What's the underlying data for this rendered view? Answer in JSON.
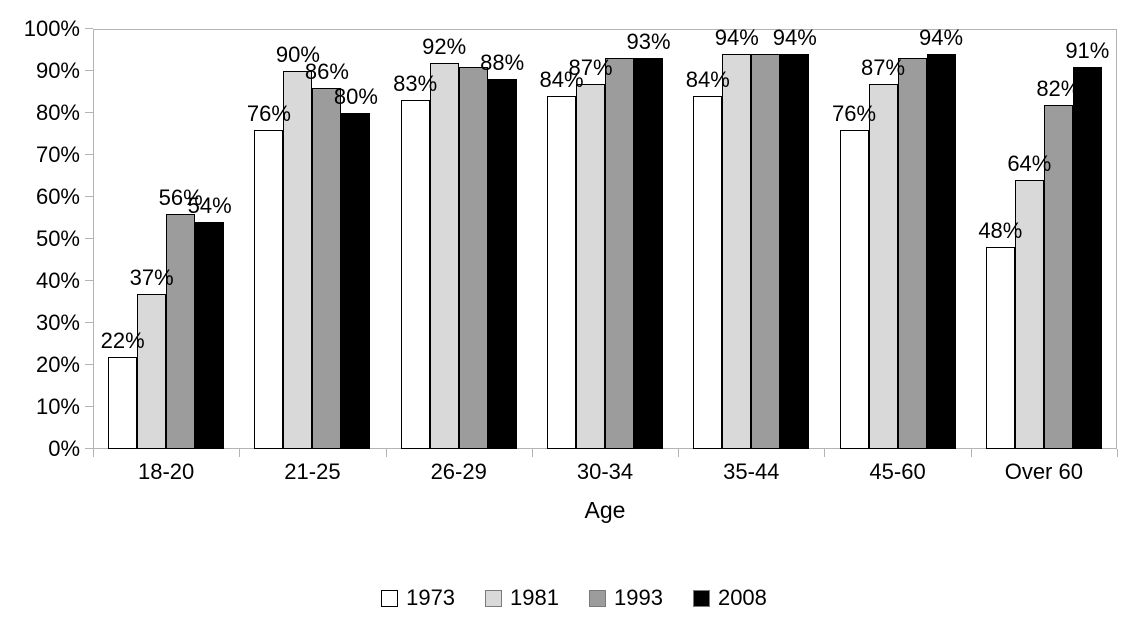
{
  "chart_data": {
    "type": "bar",
    "title": "",
    "xlabel": "Age",
    "ylabel": "",
    "categories": [
      "18-20",
      "21-25",
      "26-29",
      "30-34",
      "35-44",
      "45-60",
      "Over 60"
    ],
    "series": [
      {
        "name": "1973",
        "color": "#ffffff",
        "values": [
          22,
          76,
          83,
          84,
          84,
          76,
          48
        ],
        "labels": [
          "22%",
          "76%",
          "83%",
          "84%",
          "84%",
          "76%",
          "48%"
        ]
      },
      {
        "name": "1981",
        "color": "#d9d9d9",
        "values": [
          37,
          90,
          92,
          87,
          94,
          87,
          64
        ],
        "labels": [
          "37%",
          "90%",
          "92%",
          "87%",
          "94%",
          "87%",
          "64%"
        ]
      },
      {
        "name": "1993",
        "color": "#9c9c9c",
        "values": [
          56,
          86,
          91,
          93,
          94,
          93,
          82
        ],
        "labels": [
          "56%",
          "86%",
          null,
          null,
          null,
          null,
          "82%"
        ]
      },
      {
        "name": "2008",
        "color": "#000000",
        "values": [
          54,
          80,
          88,
          93,
          94,
          94,
          91
        ],
        "labels": [
          "54%",
          "80%",
          "88%",
          "93%",
          "94%",
          "94%",
          "91%"
        ]
      }
    ],
    "ylim": [
      0,
      100
    ],
    "y_tick_labels": [
      "0%",
      "10%",
      "20%",
      "30%",
      "40%",
      "50%",
      "60%",
      "70%",
      "80%",
      "90%",
      "100%"
    ],
    "legend_position": "bottom",
    "gridlines": "plot-border-only",
    "axis_color": "#b4b4b4",
    "text_color": "#000000"
  }
}
